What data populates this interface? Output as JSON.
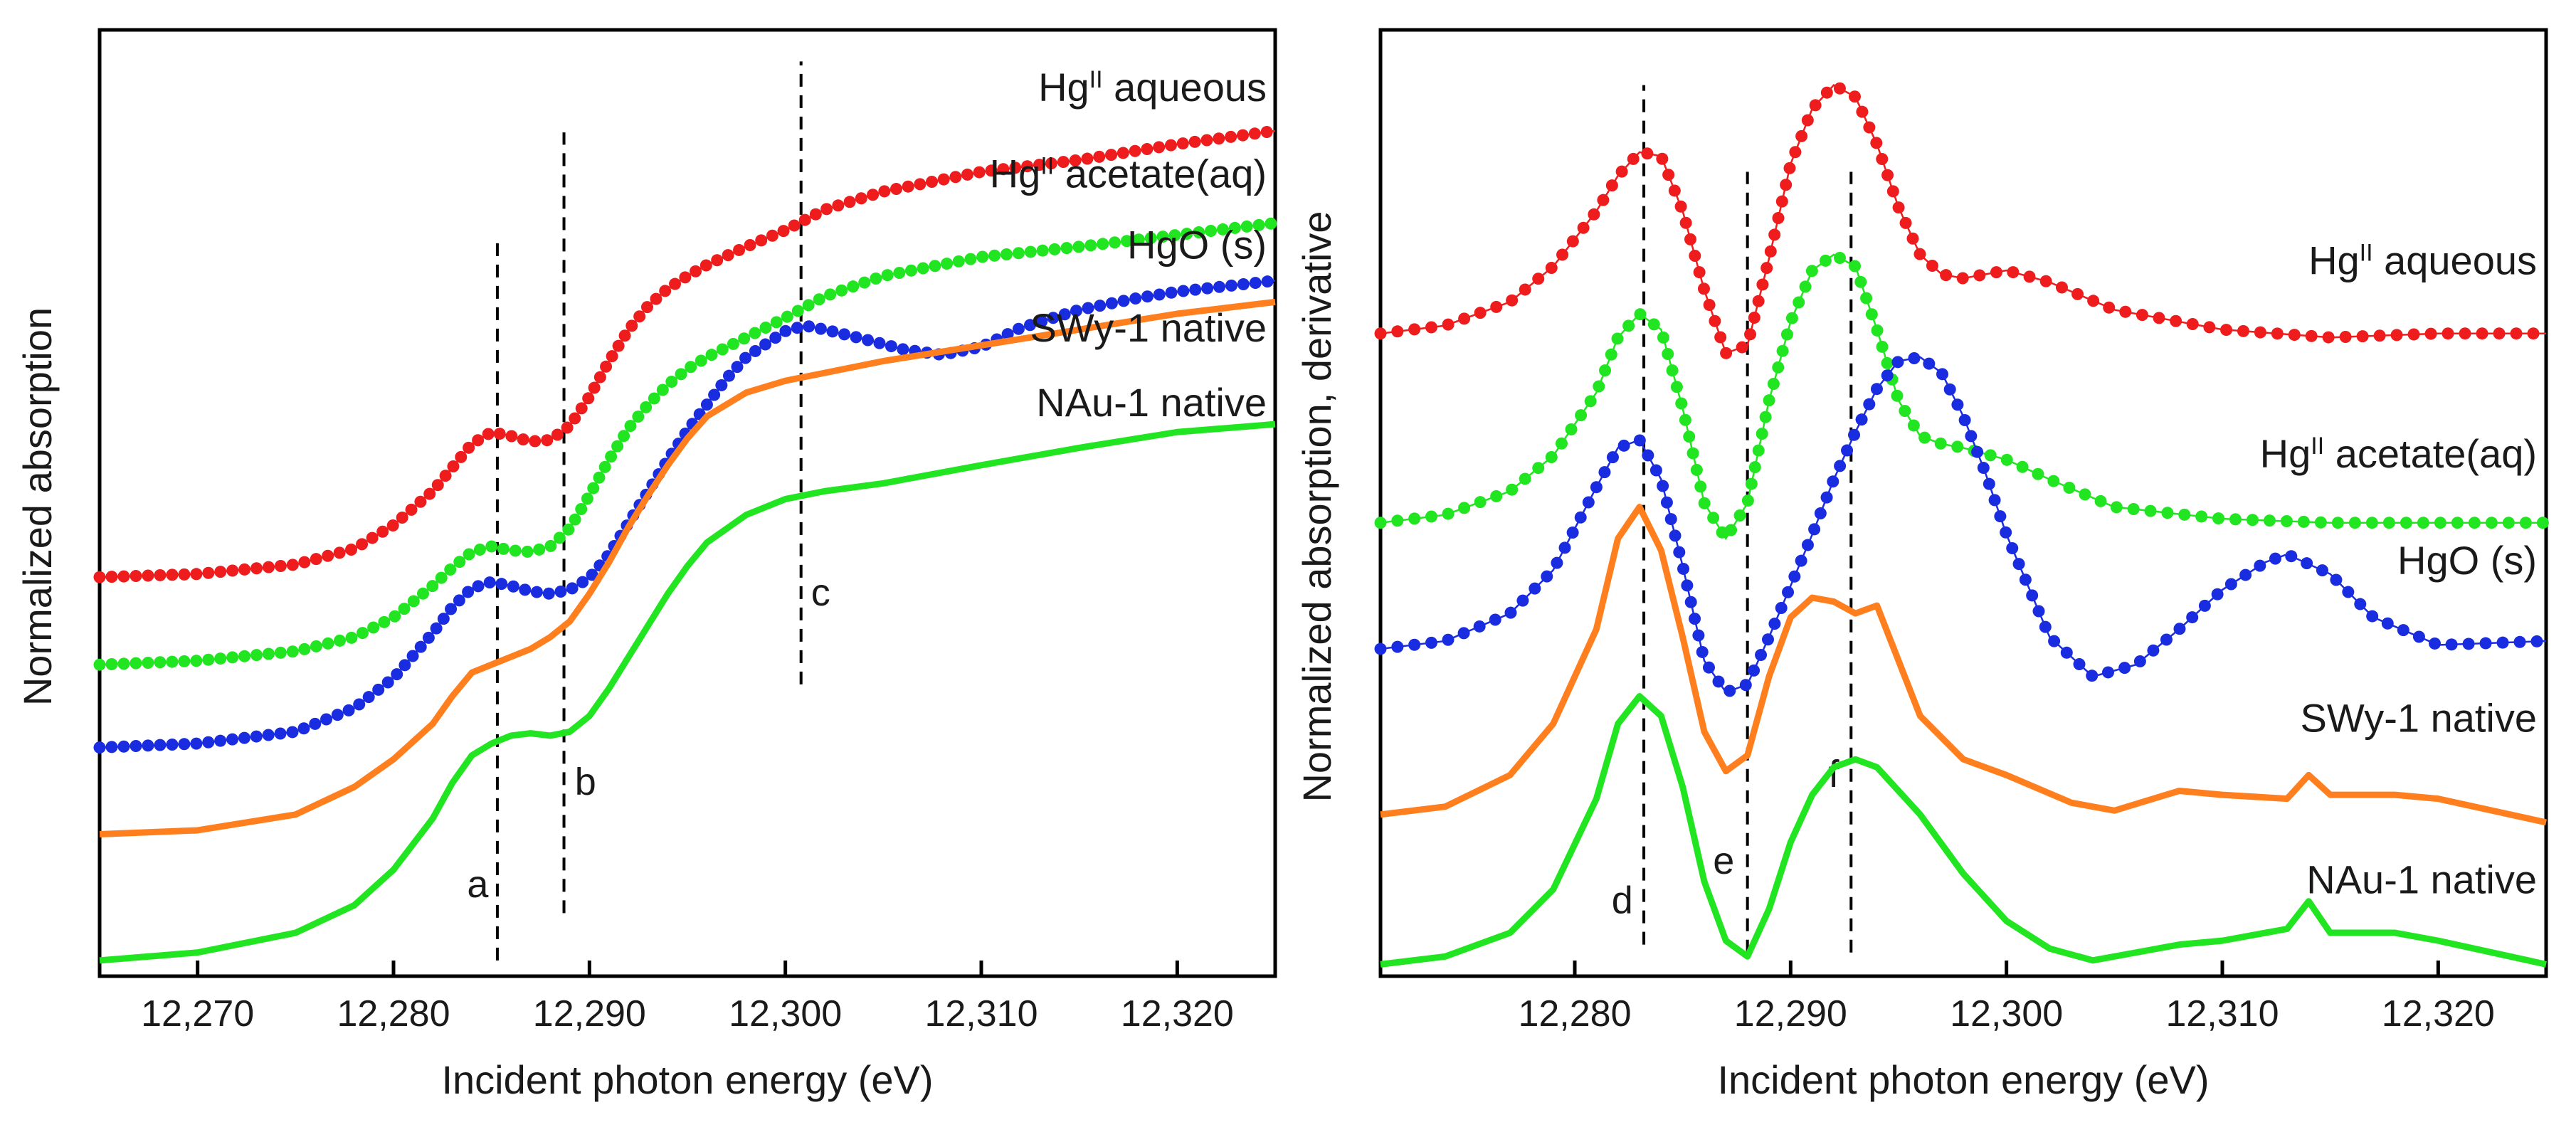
{
  "chart_data": [
    {
      "type": "line",
      "panel": "left",
      "xlabel": "Incident photon energy (eV)",
      "ylabel": "Normalized absorption",
      "xlim": [
        12265,
        12325
      ],
      "ylim": [
        0,
        12
      ],
      "xticks": [
        12270,
        12280,
        12290,
        12300,
        12310,
        12320
      ],
      "xtick_labels": [
        "12,270",
        "12,280",
        "12,290",
        "12,300",
        "12,310",
        "12,320"
      ],
      "marker_lines": [
        {
          "label": "a",
          "x": 12285.3,
          "y_from": 0.2,
          "y_to": 9.4,
          "label_x": 12284.3,
          "label_y": 1.0
        },
        {
          "label": "b",
          "x": 12288.7,
          "y_from": 0.8,
          "y_to": 10.7,
          "label_x": 12289.8,
          "label_y": 2.3
        },
        {
          "label": "c",
          "x": 12300.8,
          "y_from": 3.7,
          "y_to": 11.6,
          "label_x": 12301.8,
          "label_y": 4.7
        }
      ],
      "series": [
        {
          "name": "HgII aqueous",
          "label_main": "Hg",
          "label_sup": "II",
          "label_rest": " aqueous",
          "color": "#ee1c1c",
          "style": "dots",
          "label_y": 11.1,
          "x": [
            12265,
            12270,
            12275,
            12278,
            12280,
            12282,
            12283,
            12284,
            12285,
            12286,
            12287,
            12288,
            12289,
            12290,
            12291,
            12292,
            12293,
            12294,
            12295,
            12296,
            12298,
            12300,
            12302,
            12305,
            12310,
            12315,
            12320,
            12325
          ],
          "y": [
            5.06,
            5.1,
            5.22,
            5.42,
            5.72,
            6.15,
            6.45,
            6.75,
            6.9,
            6.85,
            6.78,
            6.8,
            6.98,
            7.35,
            7.8,
            8.2,
            8.5,
            8.72,
            8.88,
            9.02,
            9.25,
            9.46,
            9.72,
            9.95,
            10.2,
            10.35,
            10.55,
            10.72
          ]
        },
        {
          "name": "HgII acetate(aq)",
          "label_main": "Hg",
          "label_sup": "II",
          "label_rest": " acetate(aq)",
          "color": "#21e521",
          "style": "dots",
          "label_y": 10.0,
          "x": [
            12265,
            12270,
            12275,
            12278,
            12280,
            12282,
            12283,
            12284,
            12285,
            12286,
            12287,
            12288,
            12289,
            12290,
            12291,
            12292,
            12293,
            12294,
            12295,
            12296,
            12298,
            12300,
            12302,
            12305,
            12310,
            12315,
            12320,
            12325
          ],
          "y": [
            3.95,
            4.0,
            4.12,
            4.3,
            4.55,
            4.95,
            5.18,
            5.38,
            5.45,
            5.4,
            5.38,
            5.45,
            5.68,
            6.1,
            6.55,
            6.95,
            7.25,
            7.5,
            7.7,
            7.85,
            8.1,
            8.35,
            8.62,
            8.88,
            9.12,
            9.25,
            9.4,
            9.55
          ]
        },
        {
          "name": "HgO (s)",
          "label_main": "HgO (s)",
          "label_sup": "",
          "label_rest": "",
          "color": "#1a2ce0",
          "style": "dots",
          "label_y": 9.1,
          "x": [
            12265,
            12270,
            12275,
            12278,
            12280,
            12282,
            12283,
            12284,
            12285,
            12286,
            12287,
            12288,
            12289,
            12290,
            12291,
            12292,
            12293,
            12294,
            12295,
            12296,
            12297,
            12298,
            12300,
            12301,
            12302,
            12304,
            12306,
            12308,
            12310,
            12312,
            12315,
            12318,
            12320,
            12325
          ],
          "y": [
            2.9,
            2.95,
            3.1,
            3.4,
            3.78,
            4.35,
            4.68,
            4.92,
            5.0,
            4.95,
            4.88,
            4.85,
            4.9,
            5.05,
            5.35,
            5.75,
            6.15,
            6.55,
            6.92,
            7.25,
            7.58,
            7.85,
            8.18,
            8.25,
            8.2,
            8.08,
            7.95,
            7.88,
            7.98,
            8.22,
            8.45,
            8.6,
            8.68,
            8.82
          ]
        },
        {
          "name": "SWy-1 native",
          "label_main": "SWy-1 native",
          "label_sup": "",
          "label_rest": "",
          "color": "#ff7f1e",
          "style": "line",
          "label_y": 8.05,
          "x": [
            12265,
            12270,
            12275,
            12278,
            12280,
            12282,
            12283,
            12284,
            12285,
            12286,
            12287,
            12288,
            12289,
            12290,
            12291,
            12292,
            12293,
            12294,
            12295,
            12296,
            12298,
            12300,
            12302,
            12305,
            12310,
            12315,
            12320,
            12325
          ],
          "y": [
            1.8,
            1.85,
            2.05,
            2.4,
            2.75,
            3.2,
            3.55,
            3.85,
            3.95,
            4.05,
            4.15,
            4.3,
            4.5,
            4.85,
            5.25,
            5.7,
            6.1,
            6.48,
            6.82,
            7.1,
            7.4,
            7.55,
            7.65,
            7.8,
            8.0,
            8.2,
            8.4,
            8.55
          ]
        },
        {
          "name": "NAu-1 native",
          "label_main": "NAu-1 native",
          "label_sup": "",
          "label_rest": "",
          "color": "#21e521",
          "style": "line",
          "label_y": 7.1,
          "x": [
            12265,
            12270,
            12275,
            12278,
            12280,
            12282,
            12283,
            12284,
            12285,
            12286,
            12287,
            12288,
            12289,
            12290,
            12291,
            12292,
            12293,
            12294,
            12295,
            12296,
            12298,
            12300,
            12302,
            12305,
            12310,
            12315,
            12320,
            12325
          ],
          "y": [
            0.2,
            0.3,
            0.55,
            0.9,
            1.35,
            2.0,
            2.45,
            2.8,
            2.95,
            3.05,
            3.08,
            3.05,
            3.1,
            3.3,
            3.65,
            4.05,
            4.45,
            4.85,
            5.2,
            5.5,
            5.85,
            6.05,
            6.15,
            6.25,
            6.48,
            6.7,
            6.9,
            7.0
          ]
        }
      ]
    },
    {
      "type": "line",
      "panel": "right",
      "xlabel": "Incident photon energy (eV)",
      "ylabel": "Normalized absorption, derivative",
      "xlim": [
        12271,
        12325
      ],
      "ylim": [
        0,
        12
      ],
      "xticks": [
        12280,
        12290,
        12300,
        12310,
        12320
      ],
      "xtick_labels": [
        "12,280",
        "12,290",
        "12,300",
        "12,310",
        "12,320"
      ],
      "marker_lines": [
        {
          "label": "d",
          "x": 12283.2,
          "y_from": 0.4,
          "y_to": 11.3,
          "label_x": 12282.2,
          "label_y": 0.8
        },
        {
          "label": "e",
          "x": 12288.0,
          "y_from": 0.3,
          "y_to": 10.2,
          "label_x": 12286.9,
          "label_y": 1.3
        },
        {
          "label": "f",
          "x": 12292.8,
          "y_from": 0.3,
          "y_to": 10.2,
          "label_x": 12292.0,
          "label_y": 2.4
        }
      ],
      "series": [
        {
          "name": "HgII aqueous",
          "label_main": "Hg",
          "label_sup": "II",
          "label_rest": " aqueous",
          "color": "#ee1c1c",
          "style": "dots",
          "label_y": 8.9,
          "x": [
            12271,
            12274,
            12277,
            12279,
            12281,
            12282,
            12283,
            12284,
            12285,
            12286,
            12287,
            12288,
            12289,
            12290,
            12291,
            12292,
            12293,
            12294,
            12295,
            12296,
            12297,
            12298,
            12300,
            12302,
            12305,
            12310,
            12315,
            12320,
            12325
          ],
          "y": [
            8.15,
            8.25,
            8.55,
            9.0,
            9.7,
            10.15,
            10.45,
            10.4,
            9.7,
            8.7,
            7.9,
            8.0,
            9.1,
            10.3,
            11.0,
            11.3,
            11.15,
            10.55,
            9.75,
            9.15,
            8.9,
            8.85,
            8.95,
            8.8,
            8.45,
            8.2,
            8.1,
            8.15,
            8.15
          ]
        },
        {
          "name": "HgII acetate(aq)",
          "label_main": "Hg",
          "label_sup": "II",
          "label_rest": " acetate(aq)",
          "color": "#21e521",
          "style": "dots",
          "label_y": 6.45,
          "x": [
            12271,
            12274,
            12277,
            12279,
            12281,
            12282,
            12283,
            12284,
            12285,
            12286,
            12287,
            12288,
            12289,
            12290,
            12291,
            12292,
            12293,
            12294,
            12295,
            12296,
            12297,
            12298,
            12300,
            12302,
            12305,
            12310,
            12315,
            12320,
            12325
          ],
          "y": [
            5.75,
            5.85,
            6.15,
            6.6,
            7.4,
            8.1,
            8.4,
            8.2,
            7.2,
            6.0,
            5.55,
            6.0,
            7.3,
            8.3,
            8.95,
            9.15,
            9.0,
            8.2,
            7.3,
            6.85,
            6.75,
            6.7,
            6.55,
            6.3,
            5.95,
            5.8,
            5.75,
            5.75,
            5.75
          ]
        },
        {
          "name": "HgO (s)",
          "label_main": "HgO (s)",
          "label_sup": "",
          "label_rest": "",
          "color": "#1a2ce0",
          "style": "dots",
          "label_y": 5.1,
          "x": [
            12271,
            12274,
            12277,
            12279,
            12281,
            12282,
            12283,
            12284,
            12285,
            12286,
            12287,
            12288,
            12289,
            12290,
            12291,
            12292,
            12293,
            12294,
            12295,
            12296,
            12297,
            12298,
            12299,
            12300,
            12302,
            12304,
            12306,
            12308,
            12310,
            12312,
            12313,
            12315,
            12317,
            12320,
            12325
          ],
          "y": [
            4.15,
            4.25,
            4.6,
            5.15,
            6.2,
            6.7,
            6.8,
            6.3,
            5.2,
            4.0,
            3.6,
            3.7,
            4.3,
            4.95,
            5.6,
            6.3,
            6.9,
            7.45,
            7.8,
            7.85,
            7.65,
            7.1,
            6.4,
            5.6,
            4.3,
            3.8,
            3.95,
            4.4,
            4.9,
            5.25,
            5.35,
            5.1,
            4.55,
            4.2,
            4.25
          ]
        },
        {
          "name": "SWy-1 native",
          "label_main": "SWy-1 native",
          "label_sup": "",
          "label_rest": "",
          "color": "#ff7f1e",
          "style": "line",
          "label_y": 3.1,
          "x": [
            12271,
            12274,
            12277,
            12279,
            12281,
            12282,
            12283,
            12284,
            12285,
            12286,
            12287,
            12288,
            12289,
            12290,
            12291,
            12292,
            12293,
            12294,
            12295,
            12296,
            12298,
            12300,
            12303,
            12305,
            12308,
            12310,
            12313,
            12314,
            12315,
            12318,
            12320,
            12325
          ],
          "y": [
            2.05,
            2.15,
            2.55,
            3.2,
            4.4,
            5.55,
            5.95,
            5.4,
            4.3,
            3.1,
            2.6,
            2.8,
            3.8,
            4.55,
            4.8,
            4.75,
            4.6,
            4.7,
            4.0,
            3.3,
            2.75,
            2.55,
            2.2,
            2.1,
            2.35,
            2.3,
            2.25,
            2.55,
            2.3,
            2.3,
            2.25,
            1.95
          ]
        },
        {
          "name": "NAu-1 native",
          "label_main": "NAu-1 native",
          "label_sup": "",
          "label_rest": "",
          "color": "#21e521",
          "style": "line",
          "label_y": 1.05,
          "x": [
            12271,
            12274,
            12277,
            12279,
            12281,
            12282,
            12283,
            12284,
            12285,
            12286,
            12287,
            12288,
            12289,
            12290,
            12291,
            12292,
            12293,
            12294,
            12295,
            12296,
            12298,
            12300,
            12302,
            12304,
            12306,
            12308,
            12310,
            12313,
            12314,
            12315,
            12318,
            12320,
            12325
          ],
          "y": [
            0.15,
            0.25,
            0.55,
            1.1,
            2.25,
            3.2,
            3.55,
            3.3,
            2.4,
            1.2,
            0.45,
            0.25,
            0.85,
            1.7,
            2.3,
            2.65,
            2.75,
            2.65,
            2.35,
            2.05,
            1.3,
            0.7,
            0.35,
            0.2,
            0.3,
            0.4,
            0.45,
            0.6,
            0.95,
            0.55,
            0.55,
            0.45,
            0.15
          ]
        }
      ]
    }
  ]
}
